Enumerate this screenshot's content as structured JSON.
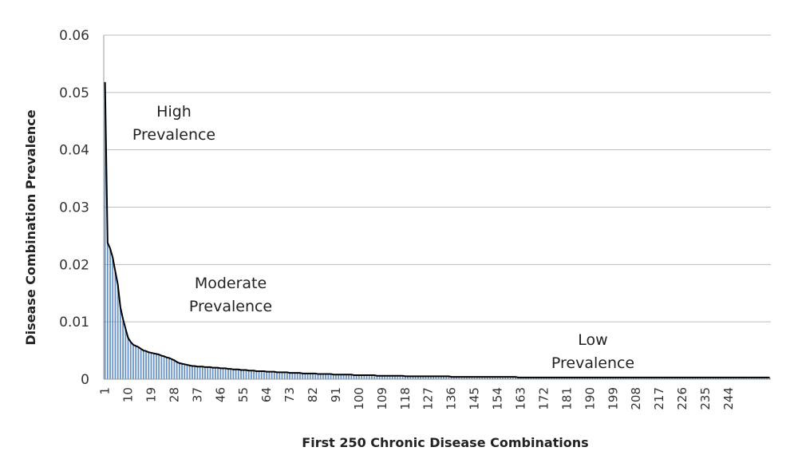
{
  "chart_data": {
    "type": "bar",
    "title": "",
    "xlabel": "First 250 Chronic Disease Combinations",
    "ylabel": "Disease Combination Prevalence",
    "ylim": [
      0,
      0.06
    ],
    "y_ticks": [
      "0",
      "0.01",
      "0.02",
      "0.03",
      "0.04",
      "0.05",
      "0.06"
    ],
    "x_range": [
      1,
      250
    ],
    "x_tick_labels": [
      "1",
      "10",
      "19",
      "28",
      "37",
      "46",
      "55",
      "64",
      "73",
      "82",
      "91",
      "100",
      "109",
      "118",
      "127",
      "136",
      "145",
      "154",
      "163",
      "172",
      "181",
      "190",
      "199",
      "208",
      "217",
      "226",
      "235",
      "244"
    ],
    "grid": true,
    "legend": "none",
    "series_color": "#4a7ebb",
    "line_color": "#000000",
    "annotations": [
      {
        "lines": [
          "High",
          "Prevalence"
        ]
      },
      {
        "lines": [
          "Moderate",
          "Prevalence"
        ]
      },
      {
        "lines": [
          "Low",
          "Prevalence"
        ]
      }
    ],
    "values": [
      0.0518,
      0.0238,
      0.0228,
      0.0212,
      0.0188,
      0.0165,
      0.0125,
      0.0105,
      0.0088,
      0.0072,
      0.0065,
      0.006,
      0.0058,
      0.0056,
      0.0053,
      0.005,
      0.0049,
      0.0047,
      0.0046,
      0.0045,
      0.0044,
      0.0043,
      0.0041,
      0.004,
      0.0038,
      0.0037,
      0.0035,
      0.0033,
      0.003,
      0.0028,
      0.0027,
      0.0026,
      0.0025,
      0.0024,
      0.0023,
      0.0023,
      0.0022,
      0.0022,
      0.0022,
      0.0021,
      0.0021,
      0.0021,
      0.002,
      0.002,
      0.002,
      0.0019,
      0.0019,
      0.0019,
      0.0018,
      0.0018,
      0.0017,
      0.0017,
      0.0017,
      0.0016,
      0.0016,
      0.0016,
      0.0015,
      0.0015,
      0.0015,
      0.0014,
      0.0014,
      0.0014,
      0.0014,
      0.0013,
      0.0013,
      0.0013,
      0.0013,
      0.0012,
      0.0012,
      0.0012,
      0.0012,
      0.0012,
      0.0011,
      0.0011,
      0.0011,
      0.0011,
      0.0011,
      0.001,
      0.001,
      0.001,
      0.001,
      0.001,
      0.001,
      0.0009,
      0.0009,
      0.0009,
      0.0009,
      0.0009,
      0.0009,
      0.0008,
      0.0008,
      0.0008,
      0.0008,
      0.0008,
      0.0008,
      0.0008,
      0.0008,
      0.0007,
      0.0007,
      0.0007,
      0.0007,
      0.0007,
      0.0007,
      0.0007,
      0.0007,
      0.0007,
      0.0006,
      0.0006,
      0.0006,
      0.0006,
      0.0006,
      0.0006,
      0.0006,
      0.0006,
      0.0006,
      0.0006,
      0.0006,
      0.0005,
      0.0005,
      0.0005,
      0.0005,
      0.0005,
      0.0005,
      0.0005,
      0.0005,
      0.0005,
      0.0005,
      0.0005,
      0.0005,
      0.0005,
      0.0005,
      0.0005,
      0.0005,
      0.0005,
      0.0005,
      0.0004,
      0.0004,
      0.0004,
      0.0004,
      0.0004,
      0.0004,
      0.0004,
      0.0004,
      0.0004,
      0.0004,
      0.0004,
      0.0004,
      0.0004,
      0.0004,
      0.0004,
      0.0004,
      0.0004,
      0.0004,
      0.0004,
      0.0004,
      0.0004,
      0.0004,
      0.0004,
      0.0004,
      0.0004,
      0.0004,
      0.0003,
      0.0003,
      0.0003,
      0.0003,
      0.0003,
      0.0003,
      0.0003,
      0.0003,
      0.0003,
      0.0003,
      0.0003,
      0.0003,
      0.0003,
      0.0003,
      0.0003,
      0.0003,
      0.0003,
      0.0003,
      0.0003,
      0.0003,
      0.0003,
      0.0003,
      0.0003,
      0.0003,
      0.0003,
      0.0003,
      0.0003,
      0.0003,
      0.0003,
      0.0003,
      0.0003,
      0.0003,
      0.0003,
      0.0003,
      0.0003,
      0.0003,
      0.0003,
      0.0003,
      0.0003,
      0.0003,
      0.0003,
      0.0003,
      0.0003,
      0.0003,
      0.0003,
      0.0003,
      0.0003,
      0.0003,
      0.0003,
      0.0003,
      0.0003,
      0.0003,
      0.0003,
      0.0003,
      0.0003,
      0.0003,
      0.0003,
      0.0003,
      0.0003,
      0.0003,
      0.0003,
      0.0003,
      0.0003,
      0.0003,
      0.0003,
      0.0003,
      0.0003,
      0.0003,
      0.0003,
      0.0003,
      0.0003,
      0.0003,
      0.0003,
      0.0003,
      0.0003,
      0.0003,
      0.0003,
      0.0003,
      0.0003,
      0.0003,
      0.0003,
      0.0003,
      0.0003,
      0.0003,
      0.0003,
      0.0003,
      0.0003,
      0.0003,
      0.0003,
      0.0003,
      0.0003,
      0.0003,
      0.0003,
      0.0003,
      0.0003,
      0.0003,
      0.0003,
      0.0003,
      0.0003
    ]
  }
}
